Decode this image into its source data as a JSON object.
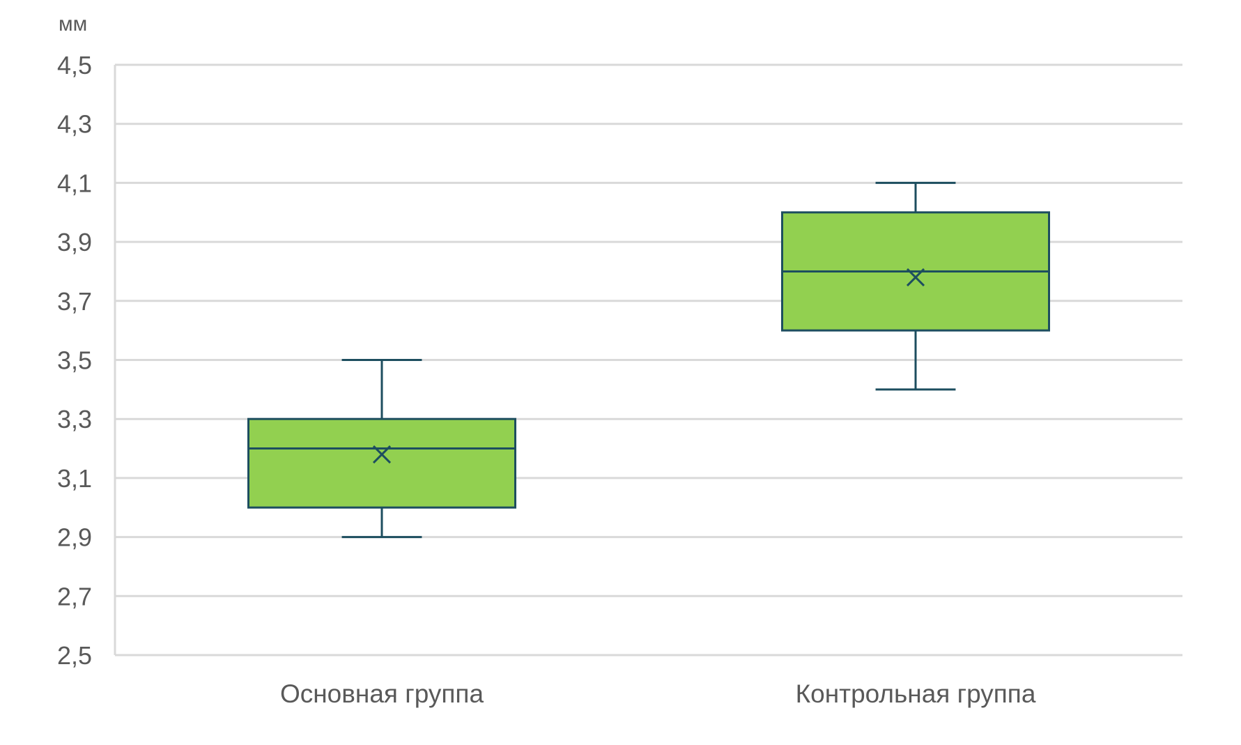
{
  "chart_data": {
    "type": "boxplot",
    "title": "",
    "xlabel": "",
    "ylabel": "мм",
    "ylim": [
      2.5,
      4.5
    ],
    "yticks": [
      {
        "value": 2.5,
        "label": "2,5"
      },
      {
        "value": 2.7,
        "label": "2,7"
      },
      {
        "value": 2.9,
        "label": "2,9"
      },
      {
        "value": 3.1,
        "label": "3,1"
      },
      {
        "value": 3.3,
        "label": "3,3"
      },
      {
        "value": 3.5,
        "label": "3,5"
      },
      {
        "value": 3.7,
        "label": "3,7"
      },
      {
        "value": 3.9,
        "label": "3,9"
      },
      {
        "value": 4.1,
        "label": "4,1"
      },
      {
        "value": 4.3,
        "label": "4,3"
      },
      {
        "value": 4.5,
        "label": "4,5"
      }
    ],
    "grid": true,
    "legend": "none",
    "categories": [
      "Основная группа",
      "Контрольная группа"
    ],
    "boxes": [
      {
        "category": "Основная группа",
        "whisker_low": 2.9,
        "q1": 3.0,
        "median": 3.2,
        "q3": 3.3,
        "whisker_high": 3.5,
        "mean": 3.18
      },
      {
        "category": "Контрольная группа",
        "whisker_low": 3.4,
        "q1": 3.6,
        "median": 3.8,
        "q3": 4.0,
        "whisker_high": 4.1,
        "mean": 3.78
      }
    ],
    "colors": {
      "box_fill": "#92d050",
      "box_stroke": "#1d4e5f",
      "grid": "#d9d9d9",
      "text": "#595959"
    }
  }
}
